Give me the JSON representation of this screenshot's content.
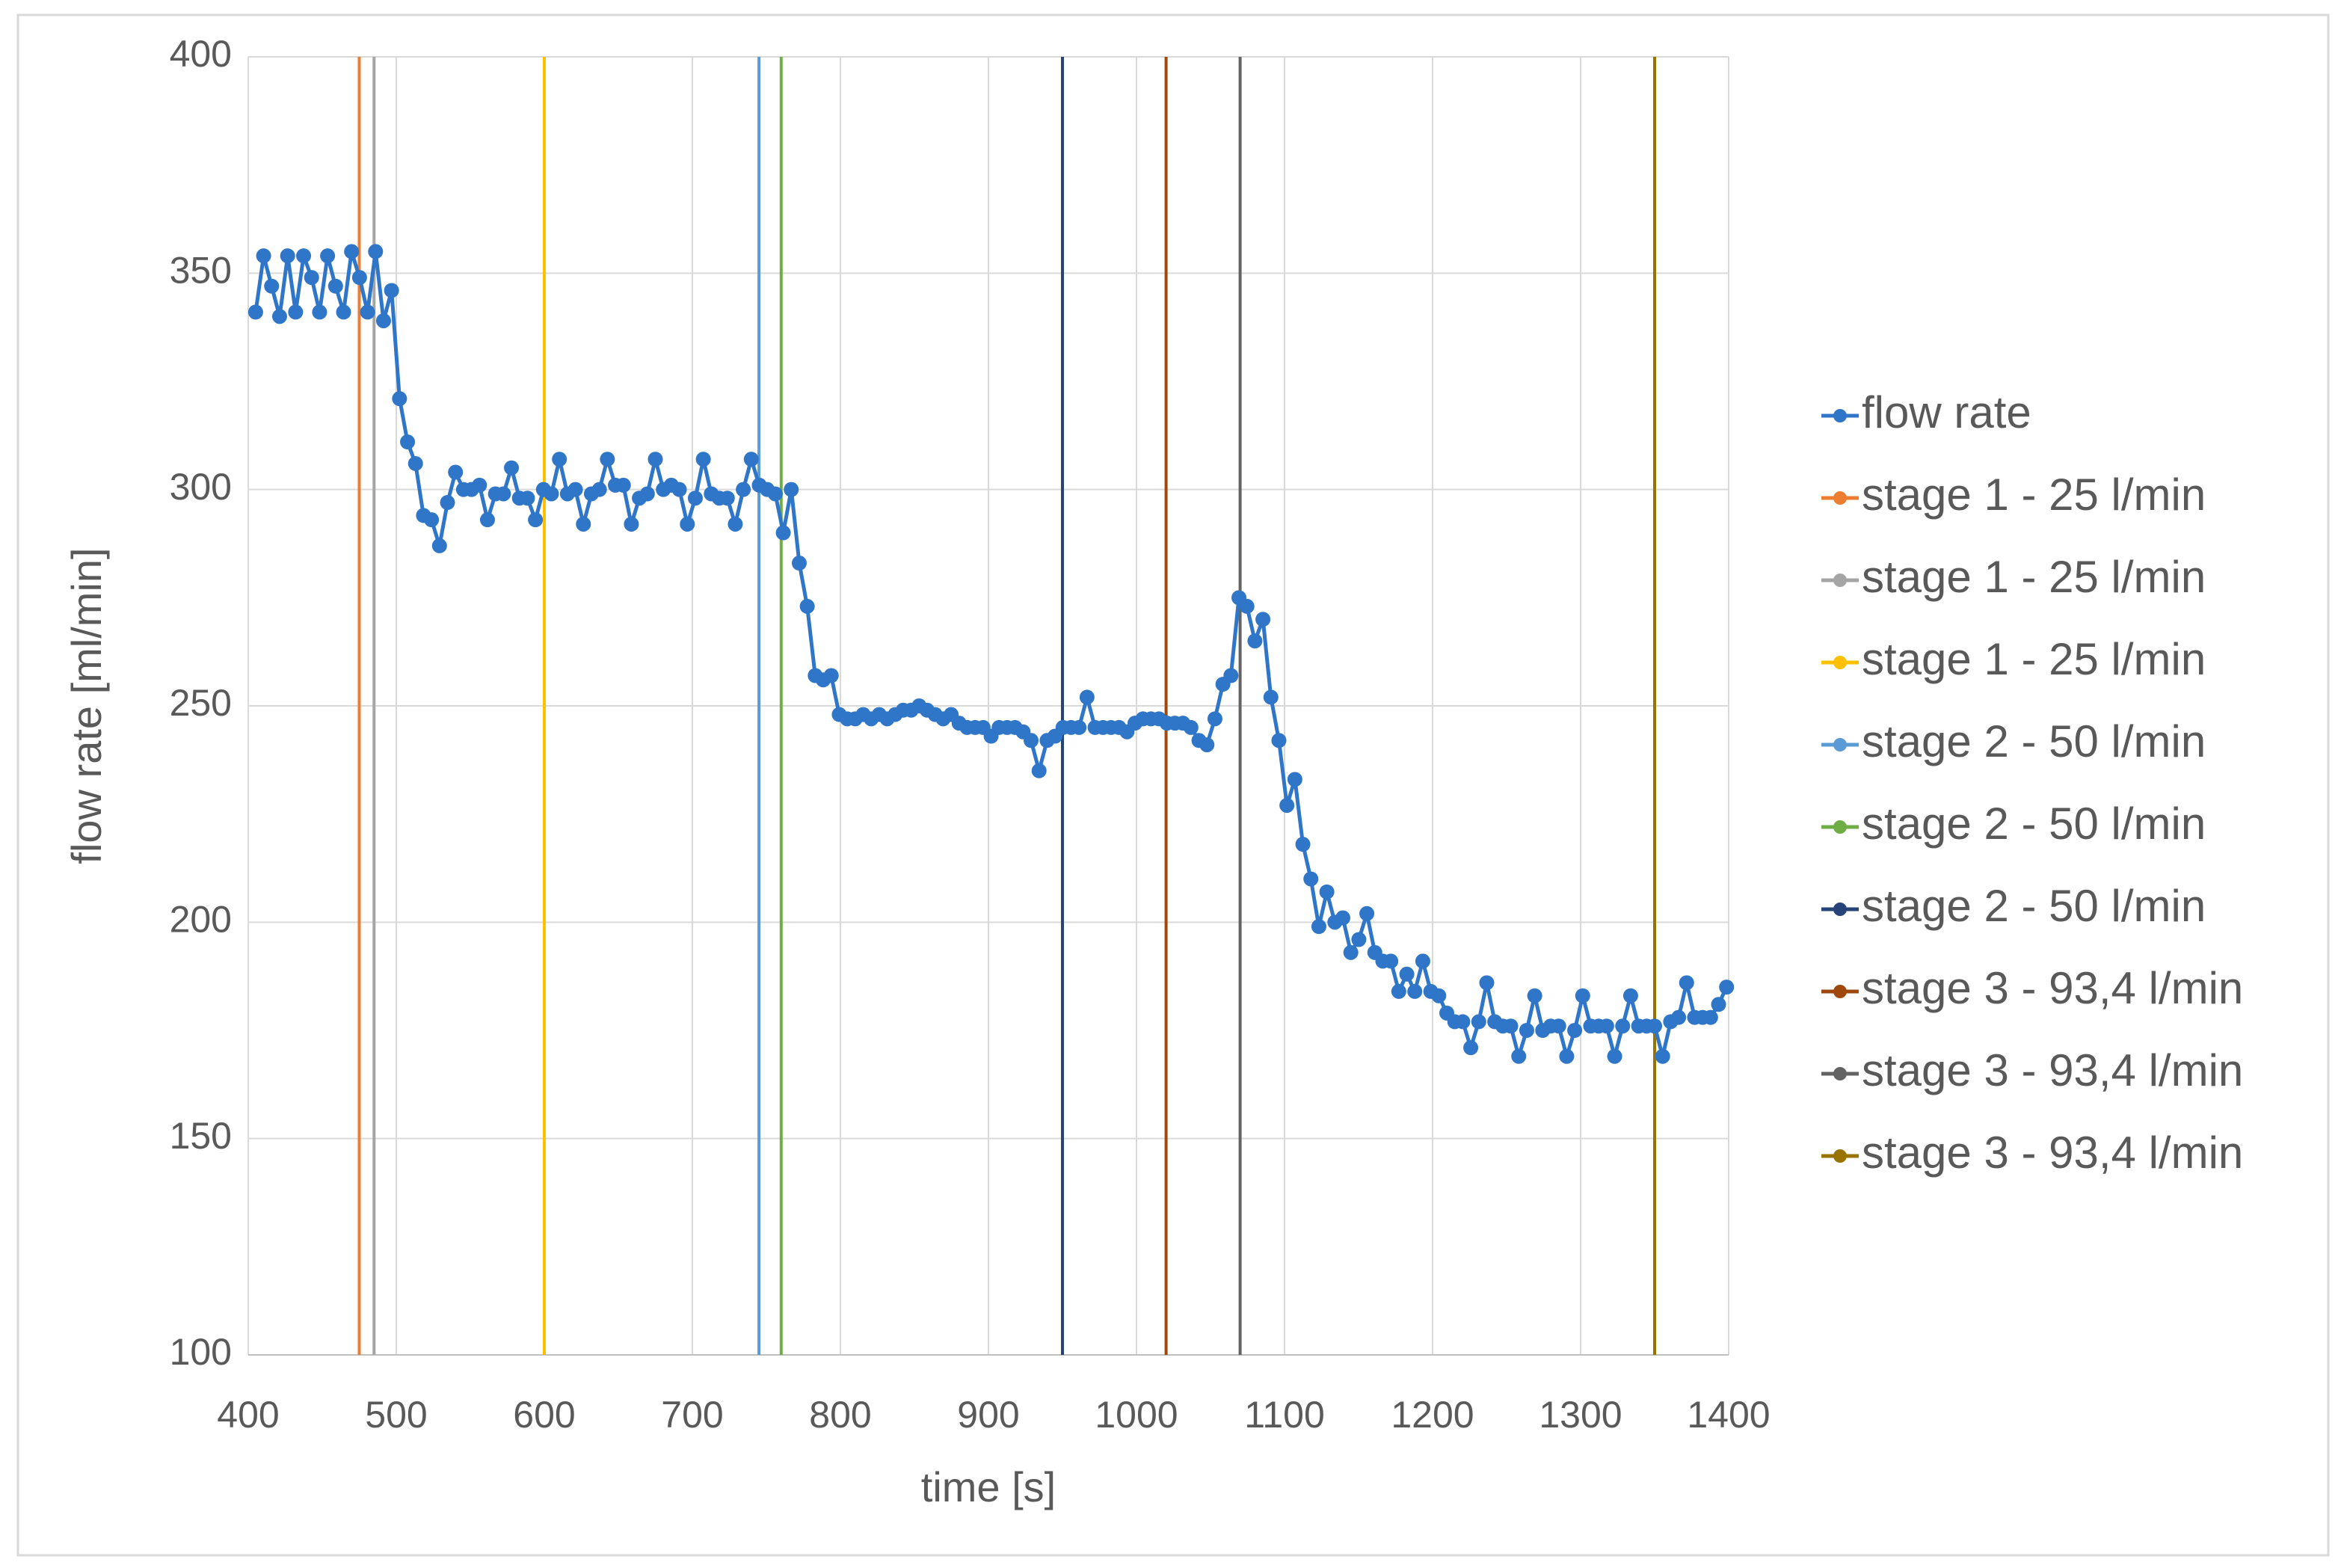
{
  "chart_data": {
    "type": "line",
    "x_label": "time [s]",
    "y_label": "flow rate [ml/min]",
    "xlim": [
      400,
      1400
    ],
    "xticks": [
      400,
      500,
      600,
      700,
      800,
      900,
      1000,
      1100,
      1200,
      1300,
      1400
    ],
    "ylim": [
      100,
      400
    ],
    "yticks": [
      100,
      150,
      200,
      250,
      300,
      350,
      400
    ],
    "grid": true,
    "legend": "right",
    "series": [
      {
        "name": "flow rate",
        "color": "#2f75c8",
        "marker": true,
        "x": [
          405,
          410.4,
          415.8,
          421.2,
          426.6,
          432,
          437.4,
          442.8,
          448.2,
          453.6,
          459,
          464.4,
          469.8,
          475.2,
          480.6,
          486,
          491.4,
          496.8,
          502.2,
          507.6,
          513,
          518.4,
          523.8,
          529.2,
          534.6,
          540,
          545.4,
          550.8,
          556.2,
          561.6,
          567,
          572.4,
          577.8,
          583.2,
          588.6,
          594,
          599.4,
          604.8,
          610.2,
          615.6,
          621,
          626.4,
          631.8,
          637.2,
          642.6,
          648,
          653.4,
          658.8,
          664.2,
          669.6,
          675,
          680.4,
          685.8,
          691.2,
          696.6,
          702,
          707.4,
          712.8,
          718.2,
          723.6,
          729,
          734.4,
          739.8,
          745.2,
          750.6,
          756,
          761.4,
          766.8,
          772.2,
          777.6,
          783,
          788.4,
          793.8,
          799.2,
          804.6,
          810,
          815.4,
          820.8,
          826.2,
          831.6,
          837,
          842.4,
          847.8,
          853.2,
          858.6,
          864,
          869.4,
          874.8,
          880.2,
          885.6,
          891,
          896.4,
          901.8,
          907.2,
          912.6,
          918,
          923.4,
          928.8,
          934.2,
          939.6,
          945,
          950.4,
          955.8,
          961.2,
          966.6,
          972,
          977.4,
          982.8,
          988.2,
          993.6,
          999,
          1004.4,
          1009.8,
          1015.2,
          1020.6,
          1026,
          1031.4,
          1036.8,
          1042.2,
          1047.6,
          1053,
          1058.4,
          1063.8,
          1069.2,
          1074.6,
          1080,
          1085.4,
          1090.8,
          1096.2,
          1101.6,
          1107,
          1112.4,
          1117.8,
          1123.2,
          1128.6,
          1134,
          1139.4,
          1144.8,
          1150.2,
          1155.6,
          1161,
          1166.4,
          1171.8,
          1177.2,
          1182.6,
          1188,
          1193.4,
          1198.8,
          1204.2,
          1209.6,
          1215,
          1220.4,
          1225.8,
          1231.2,
          1236.6,
          1242,
          1247.4,
          1252.8,
          1258.2,
          1263.6,
          1269,
          1274.4,
          1279.8,
          1285.2,
          1290.6,
          1296,
          1301.4,
          1306.8,
          1312.2,
          1317.6,
          1323,
          1328.4,
          1333.8,
          1339.2,
          1344.6,
          1350,
          1355.4,
          1360.8,
          1366.2,
          1371.6,
          1377,
          1382.4,
          1387.8,
          1393.2,
          1398.6
        ],
        "values": [
          341,
          354,
          347,
          340,
          354,
          341,
          354,
          349,
          341,
          354,
          347,
          341,
          355,
          349,
          341,
          355,
          339,
          346,
          321,
          311,
          306,
          294,
          293,
          287,
          297,
          304,
          300,
          300,
          301,
          293,
          299,
          299,
          305,
          298,
          298,
          293,
          300,
          299,
          307,
          299,
          300,
          292,
          299,
          300,
          307,
          301,
          301,
          292,
          298,
          299,
          307,
          300,
          301,
          300,
          292,
          298,
          307,
          299,
          298,
          298,
          292,
          300,
          307,
          301,
          300,
          299,
          290,
          300,
          283,
          273,
          257,
          256,
          257,
          248,
          247,
          247,
          248,
          247,
          248,
          247,
          248,
          249,
          249,
          250,
          249,
          248,
          247,
          248,
          246,
          245,
          245,
          245,
          243,
          245,
          245,
          245,
          244,
          242,
          235,
          242,
          243,
          245,
          245,
          245,
          252,
          245,
          245,
          245,
          245,
          244,
          246,
          247,
          247,
          247,
          246,
          246,
          246,
          245,
          242,
          241,
          247,
          255,
          257,
          275,
          273,
          265,
          270,
          252,
          242,
          227,
          233,
          218,
          210,
          199,
          207,
          200,
          201,
          193,
          196,
          202,
          193,
          191,
          191,
          184,
          188,
          184,
          191,
          184,
          183,
          179,
          177,
          177,
          171,
          177,
          186,
          177,
          176,
          176,
          169,
          175,
          183,
          175,
          176,
          176,
          169,
          175,
          183,
          176,
          176,
          176,
          169,
          176,
          183,
          176,
          176,
          176,
          169,
          177,
          178,
          186,
          178,
          178,
          178,
          181,
          185
        ]
      },
      {
        "name": "stage 1 - 25 l/min",
        "color": "#ed7d31",
        "marker": false,
        "x": [
          475,
          475
        ],
        "values": [
          100,
          400
        ]
      },
      {
        "name": "stage 1 - 25 l/min",
        "color": "#a5a5a5",
        "marker": false,
        "x": [
          485,
          485
        ],
        "values": [
          100,
          400
        ]
      },
      {
        "name": "stage 1 - 25 l/min",
        "color": "#ffc000",
        "marker": false,
        "x": [
          600,
          600
        ],
        "values": [
          100,
          400
        ]
      },
      {
        "name": "stage 2 - 50 l/min",
        "color": "#5b9bd5",
        "marker": false,
        "x": [
          745,
          745
        ],
        "values": [
          100,
          400
        ]
      },
      {
        "name": "stage 2 - 50 l/min",
        "color": "#70ad47",
        "marker": false,
        "x": [
          760,
          760
        ],
        "values": [
          100,
          400
        ]
      },
      {
        "name": "stage 2 - 50 l/min",
        "color": "#264478",
        "marker": false,
        "x": [
          950,
          950
        ],
        "values": [
          100,
          400
        ]
      },
      {
        "name": "stage 3 - 93,4 l/min",
        "color": "#9e480e",
        "marker": false,
        "x": [
          1020,
          1020
        ],
        "values": [
          100,
          400
        ]
      },
      {
        "name": "stage 3 - 93,4 l/min",
        "color": "#636363",
        "marker": false,
        "x": [
          1070,
          1070
        ],
        "values": [
          100,
          400
        ]
      },
      {
        "name": "stage 3 - 93,4 l/min",
        "color": "#997300",
        "marker": false,
        "x": [
          1350,
          1350
        ],
        "values": [
          100,
          400
        ]
      }
    ]
  }
}
